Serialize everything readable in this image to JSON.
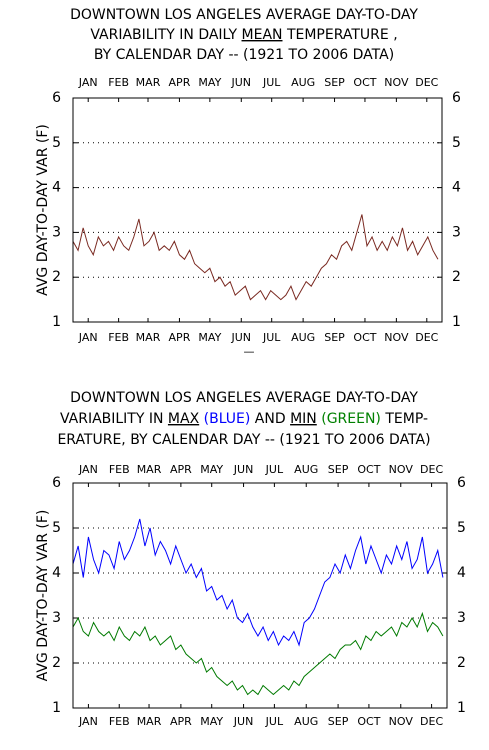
{
  "separator": "—",
  "chart_data": [
    {
      "type": "line",
      "title_lines": [
        [
          {
            "text": "DOWNTOWN LOS ANGELES AVERAGE DAY-TO-DAY"
          }
        ],
        [
          {
            "text": "VARIABILITY IN DAILY "
          },
          {
            "text": "MEAN",
            "underline": true
          },
          {
            "text": " TEMPERATURE ,"
          }
        ],
        [
          {
            "text": "BY CALENDAR DAY -- (1921 TO 2006 DATA)"
          }
        ]
      ],
      "ylabel": "AVG DAY-TO-DAY VAR (F)",
      "xlim": [
        1,
        365
      ],
      "ylim": [
        1,
        6
      ],
      "yticks": [
        1,
        2,
        3,
        4,
        5,
        6
      ],
      "grid": true,
      "xticks": [
        {
          "value": 16,
          "label": "JAN"
        },
        {
          "value": 46,
          "label": "FEB"
        },
        {
          "value": 75,
          "label": "MAR"
        },
        {
          "value": 106,
          "label": "APR"
        },
        {
          "value": 136,
          "label": "MAY"
        },
        {
          "value": 167,
          "label": "JUN"
        },
        {
          "value": 197,
          "label": "JUL"
        },
        {
          "value": 228,
          "label": "AUG"
        },
        {
          "value": 259,
          "label": "SEP"
        },
        {
          "value": 289,
          "label": "OCT"
        },
        {
          "value": 320,
          "label": "NOV"
        },
        {
          "value": 350,
          "label": "DEC"
        }
      ],
      "x": [
        1,
        6,
        11,
        16,
        21,
        26,
        31,
        36,
        41,
        46,
        51,
        56,
        61,
        66,
        71,
        76,
        81,
        86,
        91,
        96,
        101,
        106,
        111,
        116,
        121,
        126,
        131,
        136,
        141,
        146,
        151,
        156,
        161,
        166,
        171,
        176,
        181,
        186,
        191,
        196,
        201,
        206,
        211,
        216,
        221,
        226,
        231,
        236,
        241,
        246,
        251,
        256,
        261,
        266,
        271,
        276,
        281,
        286,
        291,
        296,
        301,
        306,
        311,
        316,
        321,
        326,
        331,
        336,
        341,
        346,
        351,
        356,
        361
      ],
      "series": [
        {
          "color": "#7a2a22",
          "values": [
            2.8,
            2.6,
            3.1,
            2.7,
            2.5,
            2.9,
            2.7,
            2.8,
            2.6,
            2.9,
            2.7,
            2.6,
            2.9,
            3.3,
            2.7,
            2.8,
            3.0,
            2.6,
            2.7,
            2.6,
            2.8,
            2.5,
            2.4,
            2.6,
            2.3,
            2.2,
            2.1,
            2.2,
            1.9,
            2.0,
            1.8,
            1.9,
            1.6,
            1.7,
            1.8,
            1.5,
            1.6,
            1.7,
            1.5,
            1.7,
            1.6,
            1.5,
            1.6,
            1.8,
            1.5,
            1.7,
            1.9,
            1.8,
            2.0,
            2.2,
            2.3,
            2.5,
            2.4,
            2.7,
            2.8,
            2.6,
            3.0,
            3.4,
            2.7,
            2.9,
            2.6,
            2.8,
            2.6,
            2.9,
            2.7,
            3.1,
            2.6,
            2.8,
            2.5,
            2.7,
            2.9,
            2.6,
            2.4
          ]
        }
      ]
    },
    {
      "type": "line",
      "title_lines": [
        [
          {
            "text": "DOWNTOWN LOS ANGELES AVERAGE DAY-TO-DAY"
          }
        ],
        [
          {
            "text": "VARIABILITY IN "
          },
          {
            "text": "MAX",
            "underline": true
          },
          {
            "text": " (BLUE)",
            "color": "#0000ff"
          },
          {
            "text": " AND "
          },
          {
            "text": "MIN",
            "underline": true
          },
          {
            "text": " (GREEN)",
            "color": "#008000"
          },
          {
            "text": " TEMP-"
          }
        ],
        [
          {
            "text": "ERATURE, BY CALENDAR DAY -- (1921 TO 2006 DATA)"
          }
        ]
      ],
      "ylabel": "AVG DAY-TO-DAY VAR (F)",
      "xlim": [
        1,
        365
      ],
      "ylim": [
        1,
        6
      ],
      "yticks": [
        1,
        2,
        3,
        4,
        5,
        6
      ],
      "grid": true,
      "xticks": [
        {
          "value": 16,
          "label": "JAN"
        },
        {
          "value": 46,
          "label": "FEB"
        },
        {
          "value": 75,
          "label": "MAR"
        },
        {
          "value": 106,
          "label": "APR"
        },
        {
          "value": 136,
          "label": "MAY"
        },
        {
          "value": 167,
          "label": "JUN"
        },
        {
          "value": 197,
          "label": "JUL"
        },
        {
          "value": 228,
          "label": "AUG"
        },
        {
          "value": 259,
          "label": "SEP"
        },
        {
          "value": 289,
          "label": "OCT"
        },
        {
          "value": 320,
          "label": "NOV"
        },
        {
          "value": 350,
          "label": "DEC"
        }
      ],
      "x": [
        1,
        6,
        11,
        16,
        21,
        26,
        31,
        36,
        41,
        46,
        51,
        56,
        61,
        66,
        71,
        76,
        81,
        86,
        91,
        96,
        101,
        106,
        111,
        116,
        121,
        126,
        131,
        136,
        141,
        146,
        151,
        156,
        161,
        166,
        171,
        176,
        181,
        186,
        191,
        196,
        201,
        206,
        211,
        216,
        221,
        226,
        231,
        236,
        241,
        246,
        251,
        256,
        261,
        266,
        271,
        276,
        281,
        286,
        291,
        296,
        301,
        306,
        311,
        316,
        321,
        326,
        331,
        336,
        341,
        346,
        351,
        356,
        361
      ],
      "series": [
        {
          "color": "#0000ff",
          "values": [
            4.2,
            4.6,
            3.9,
            4.8,
            4.3,
            4.0,
            4.5,
            4.4,
            4.1,
            4.7,
            4.3,
            4.5,
            4.8,
            5.2,
            4.6,
            5.0,
            4.4,
            4.7,
            4.5,
            4.2,
            4.6,
            4.3,
            4.0,
            4.2,
            3.9,
            4.1,
            3.6,
            3.7,
            3.4,
            3.5,
            3.2,
            3.4,
            3.0,
            2.9,
            3.1,
            2.8,
            2.6,
            2.8,
            2.5,
            2.7,
            2.4,
            2.6,
            2.5,
            2.7,
            2.4,
            2.9,
            3.0,
            3.2,
            3.5,
            3.8,
            3.9,
            4.2,
            4.0,
            4.4,
            4.1,
            4.5,
            4.8,
            4.2,
            4.6,
            4.3,
            4.0,
            4.4,
            4.2,
            4.6,
            4.3,
            4.7,
            4.1,
            4.3,
            4.8,
            4.0,
            4.2,
            4.5,
            3.9
          ]
        },
        {
          "color": "#007a00",
          "values": [
            2.8,
            3.0,
            2.7,
            2.6,
            2.9,
            2.7,
            2.6,
            2.7,
            2.5,
            2.8,
            2.6,
            2.5,
            2.7,
            2.6,
            2.8,
            2.5,
            2.6,
            2.4,
            2.5,
            2.6,
            2.3,
            2.4,
            2.2,
            2.1,
            2.0,
            2.1,
            1.8,
            1.9,
            1.7,
            1.6,
            1.5,
            1.6,
            1.4,
            1.5,
            1.3,
            1.4,
            1.3,
            1.5,
            1.4,
            1.3,
            1.4,
            1.5,
            1.4,
            1.6,
            1.5,
            1.7,
            1.8,
            1.9,
            2.0,
            2.1,
            2.2,
            2.1,
            2.3,
            2.4,
            2.4,
            2.5,
            2.3,
            2.6,
            2.5,
            2.7,
            2.6,
            2.7,
            2.8,
            2.6,
            2.9,
            2.8,
            3.0,
            2.8,
            3.1,
            2.7,
            2.9,
            2.8,
            2.6
          ]
        }
      ]
    }
  ]
}
